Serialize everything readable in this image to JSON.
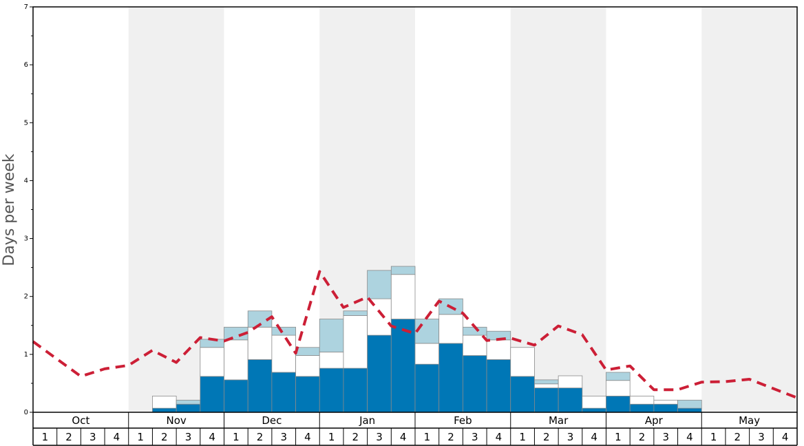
{
  "chart_data": {
    "type": "bar",
    "title": "",
    "xlabel": "",
    "ylabel": "Days per week",
    "ylim": [
      0,
      7
    ],
    "yticks": [
      0,
      1,
      2,
      3,
      4,
      5,
      6,
      7
    ],
    "months": [
      "Oct",
      "Nov",
      "Dec",
      "Jan",
      "Feb",
      "Mar",
      "Apr",
      "May"
    ],
    "weeks": [
      "1",
      "2",
      "3",
      "4"
    ],
    "stack_colors": [
      "#0077b6",
      "#ffffff",
      "#add3df"
    ],
    "line_color": "#cc1f36",
    "shade_color": "#f0f0f0",
    "series": [
      {
        "values": [
          0,
          0,
          0,
          0,
          0,
          0.07,
          0.14,
          0.62,
          0.56,
          0.91,
          0.69,
          0.62,
          0.76,
          0.76,
          1.33,
          1.61,
          0.83,
          1.19,
          0.98,
          0.91,
          0.62,
          0.42,
          0.42,
          0.07,
          0.28,
          0.14,
          0.14,
          0.07,
          0,
          0,
          0,
          0
        ]
      },
      {
        "values": [
          0,
          0,
          0,
          0,
          0,
          0.21,
          0.0,
          0.5,
          0.69,
          0.56,
          0.64,
          0.36,
          0.28,
          0.91,
          0.63,
          0.77,
          0.36,
          0.5,
          0.35,
          0.34,
          0.5,
          0.07,
          0.21,
          0.21,
          0.27,
          0.14,
          0.07,
          0,
          0,
          0,
          0,
          0
        ]
      },
      {
        "values": [
          0,
          0,
          0,
          0,
          0,
          0,
          0.07,
          0.14,
          0.22,
          0.28,
          0.14,
          0.14,
          0.57,
          0.08,
          0.49,
          0.14,
          0.42,
          0.27,
          0.14,
          0.15,
          0,
          0.07,
          0,
          0,
          0.14,
          0,
          0,
          0.14,
          0,
          0,
          0,
          0
        ]
      },
      {
        "values": [
          1.22,
          0.92,
          0.62,
          0.75,
          0.81,
          1.07,
          0.86,
          1.29,
          1.23,
          1.38,
          1.65,
          1.02,
          2.43,
          1.81,
          1.99,
          1.49,
          1.36,
          1.92,
          1.71,
          1.24,
          1.28,
          1.16,
          1.49,
          1.34,
          0.73,
          0.8,
          0.39,
          0.39,
          0.52,
          0.53,
          0.57,
          0.25
        ]
      }
    ]
  }
}
